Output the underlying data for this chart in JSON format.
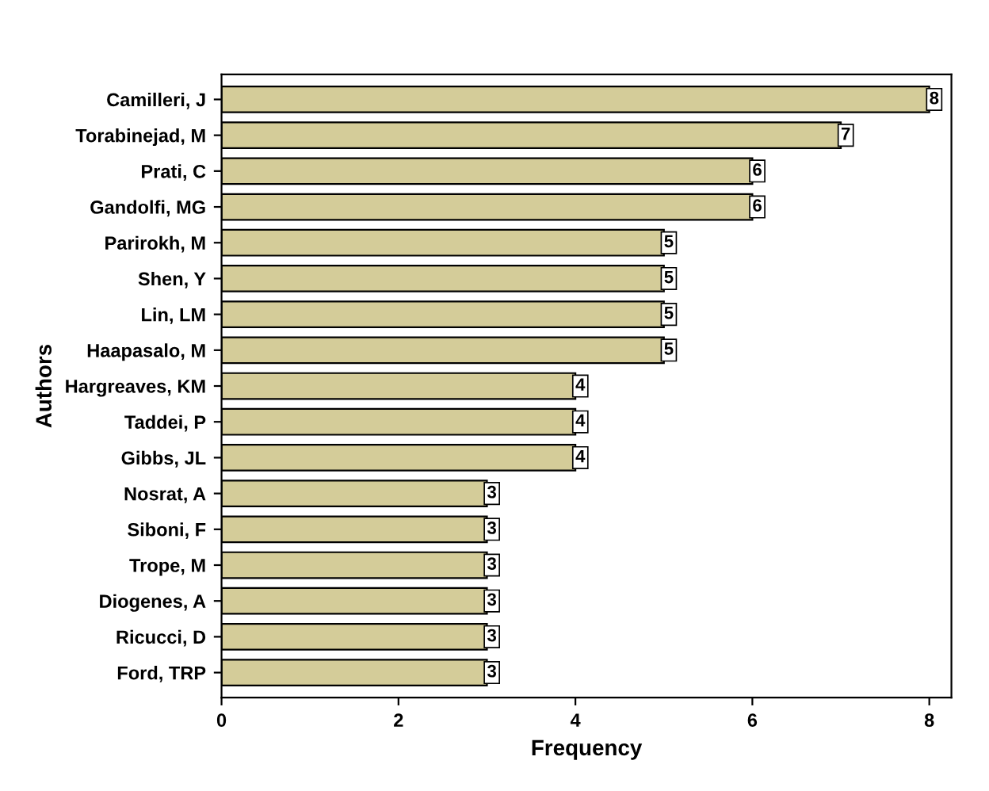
{
  "chart_data": {
    "type": "bar",
    "orientation": "horizontal",
    "xlabel": "Frequency",
    "ylabel": "Authors",
    "categories": [
      "Camilleri, J",
      "Torabinejad, M",
      "Prati, C",
      "Gandolfi, MG",
      "Parirokh, M",
      "Shen, Y",
      "Lin, LM",
      "Haapasalo, M",
      "Hargreaves, KM",
      "Taddei, P",
      "Gibbs, JL",
      "Nosrat, A",
      "Siboni, F",
      "Trope, M",
      "Diogenes, A",
      "Ricucci, D",
      "Ford, TRP"
    ],
    "values": [
      8,
      7,
      6,
      6,
      5,
      5,
      5,
      5,
      4,
      4,
      4,
      3,
      3,
      3,
      3,
      3,
      3
    ],
    "color": "#d4cc99",
    "xlim": [
      0,
      8.25
    ],
    "xticks": [
      0,
      2,
      4,
      6,
      8
    ],
    "data_labels": true,
    "grid": false
  }
}
